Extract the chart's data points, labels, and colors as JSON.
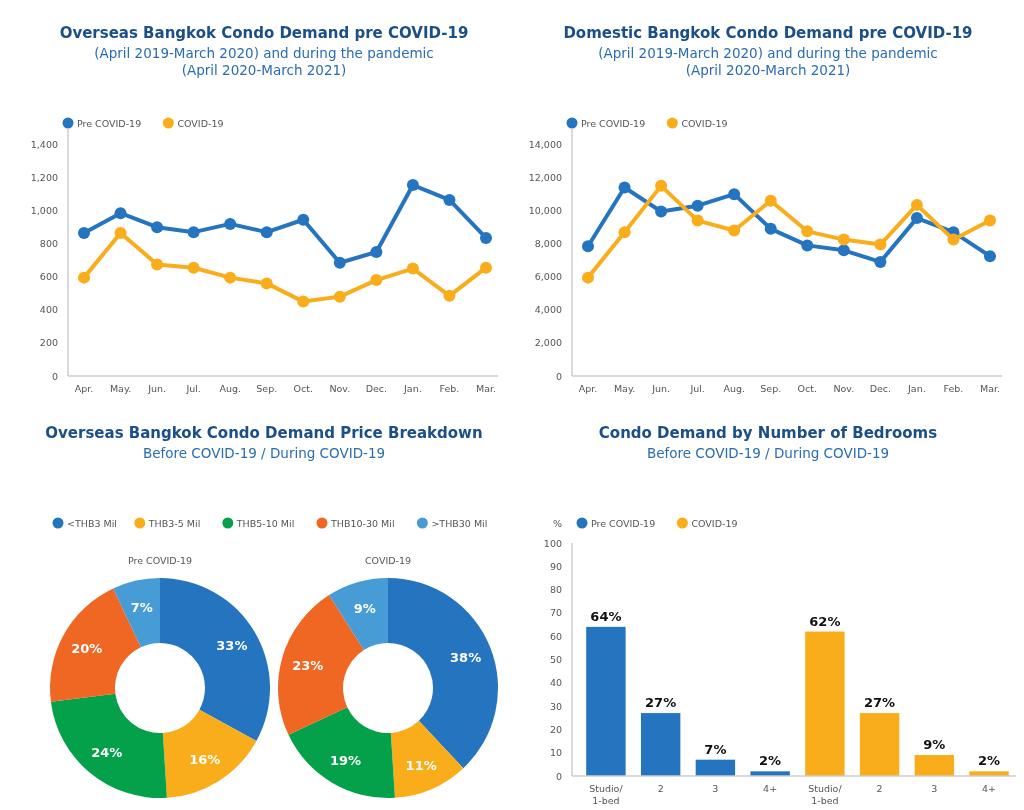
{
  "chart_data": [
    {
      "type": "line",
      "title": "Overseas Bangkok Condo Demand pre COVID-19",
      "subtitle": "(April 2019-March 2020) and during the pandemic\n(April 2020-March 2021)",
      "categories": [
        "Apr.",
        "May.",
        "Jun.",
        "Jul.",
        "Aug.",
        "Sep.",
        "Oct.",
        "Nov.",
        "Dec.",
        "Jan.",
        "Feb.",
        "Mar."
      ],
      "series": [
        {
          "name": "Pre COVID-19",
          "color": "#2474c0",
          "values": [
            865,
            985,
            900,
            870,
            920,
            870,
            945,
            685,
            750,
            1155,
            1065,
            835
          ]
        },
        {
          "name": "COVID-19",
          "color": "#f9ad1b",
          "values": [
            595,
            865,
            675,
            655,
            595,
            560,
            450,
            480,
            580,
            650,
            485,
            655
          ]
        }
      ],
      "ylim": [
        0,
        1500
      ],
      "yticks": [
        0,
        200,
        400,
        600,
        800,
        {
          "value": 1000,
          "label": "1,000"
        },
        {
          "value": 1200,
          "label": "1,200"
        },
        {
          "value": 1400,
          "label": "1,400"
        }
      ],
      "grid": false,
      "legend": "top left",
      "marker": "circle",
      "line_style": "solid"
    },
    {
      "type": "line",
      "title": "Domestic Bangkok Condo Demand pre COVID-19",
      "subtitle": "(April 2019-March 2020) and during the pandemic\n(April 2020-March 2021)",
      "categories": [
        "Apr.",
        "May.",
        "Jun.",
        "Jul.",
        "Aug.",
        "Sep.",
        "Oct.",
        "Nov.",
        "Dec.",
        "Jan.",
        "Feb.",
        "Mar."
      ],
      "series": [
        {
          "name": "Pre COVID-19",
          "color": "#2474c0",
          "values": [
            7850,
            11400,
            9950,
            10300,
            11000,
            8900,
            7900,
            7600,
            6900,
            9550,
            8700,
            7250
          ]
        },
        {
          "name": "COVID-19",
          "color": "#f9ad1b",
          "values": [
            5950,
            8700,
            11500,
            9400,
            8800,
            10600,
            8750,
            8250,
            7950,
            10350,
            8250,
            9400
          ]
        }
      ],
      "ylim": [
        0,
        15000
      ],
      "yticks": [
        0,
        {
          "value": 2000,
          "label": "2,000"
        },
        {
          "value": 4000,
          "label": "4,000"
        },
        {
          "value": 6000,
          "label": "6,000"
        },
        {
          "value": 8000,
          "label": "8,000"
        },
        {
          "value": 10000,
          "label": "10,000"
        },
        {
          "value": 12000,
          "label": "12,000"
        },
        {
          "value": 14000,
          "label": "14,000"
        }
      ],
      "grid": false,
      "legend": "top left",
      "marker": "circle",
      "line_style": "solid"
    },
    {
      "type": "donut",
      "title": "Overseas Bangkok Condo Demand Price Breakdown",
      "subtitle": "Before COVID-19 / During COVID-19",
      "annotations": [
        "Pre COVID-19"
      ],
      "categories": [
        "<THB3 Mil",
        "THB3-5 Mil",
        "THB5-10 Mil",
        "THB10-30 Mil",
        ">THB30 Mil"
      ],
      "values": [
        33,
        16,
        24,
        20,
        7
      ],
      "value_labels": [
        "33%",
        "16%",
        "24%",
        "20%",
        "7%"
      ],
      "colors": [
        "#2474c0",
        "#f9ad1b",
        "#05a04a",
        "#ef6722",
        "#479cd6"
      ],
      "legend": "top"
    },
    {
      "type": "donut",
      "annotations": [
        "COVID-19"
      ],
      "categories": [
        null,
        null,
        null,
        null,
        null
      ],
      "values": [
        38,
        11,
        19,
        23,
        9
      ],
      "value_labels": [
        "38%",
        "11%",
        "19%",
        "23%",
        "9%"
      ],
      "colors": [
        "#2474c0",
        "#f9ad1b",
        "#05a04a",
        "#ef6722",
        "#479cd6"
      ]
    },
    {
      "type": "bar",
      "title": "Condo Demand by Number of Bedrooms",
      "subtitle": "Before COVID-19 / During COVID-19",
      "ylabel": "%",
      "categories": [
        "Studio/\n1-bed",
        "2",
        "3",
        "4+",
        "Studio/\n1-bed",
        "2",
        "3",
        "4+"
      ],
      "series": [
        {
          "name": "Pre COVID-19",
          "color": "#2474c0",
          "values": [
            64,
            27,
            7,
            2,
            null,
            null,
            null,
            null
          ],
          "value_labels": [
            "64%",
            "27%",
            "7%",
            "2%",
            null,
            null,
            null,
            null
          ]
        },
        {
          "name": "COVID-19",
          "color": "#f9ad1b",
          "values": [
            null,
            null,
            null,
            null,
            62,
            27,
            9,
            2
          ],
          "value_labels": [
            null,
            null,
            null,
            null,
            "62%",
            "27%",
            "9%",
            "2%"
          ]
        }
      ],
      "ylim": [
        0,
        100
      ],
      "yticks": [
        0,
        10,
        20,
        30,
        40,
        50,
        60,
        70,
        80,
        90,
        100
      ],
      "grid": false,
      "legend": "top left"
    }
  ]
}
